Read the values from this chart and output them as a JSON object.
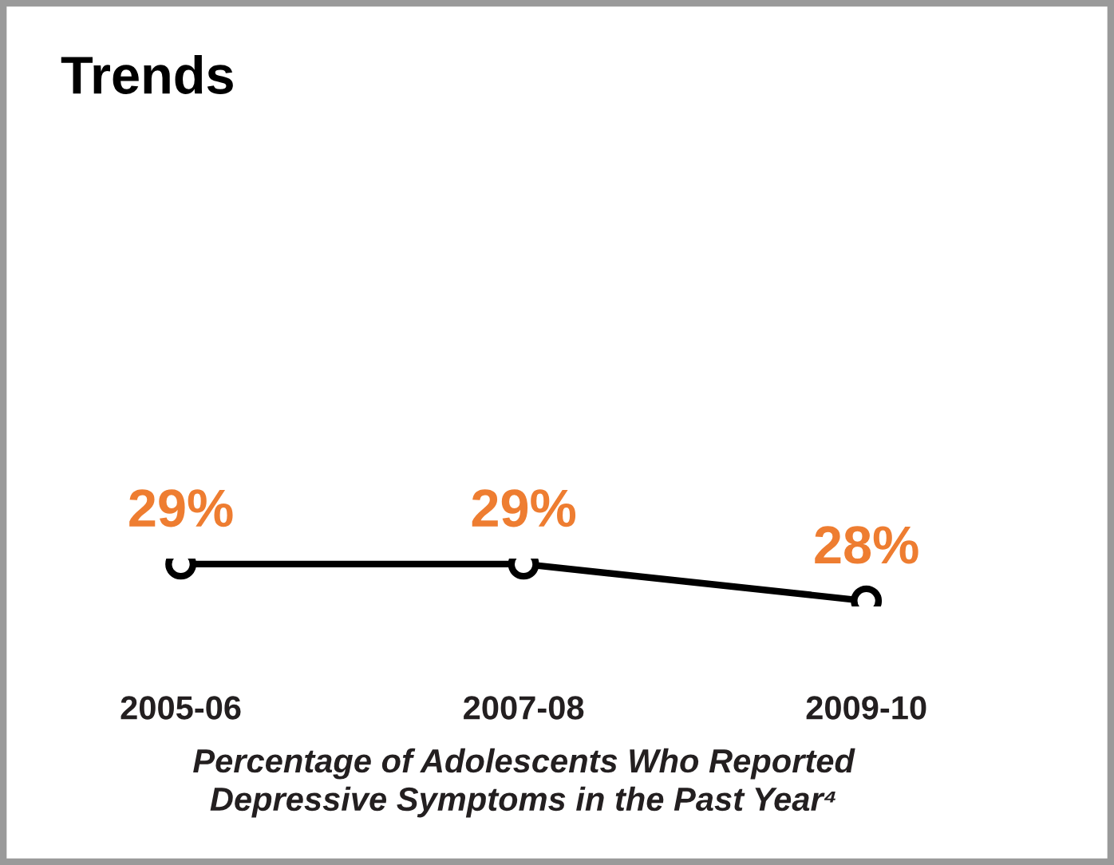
{
  "chart_data": {
    "type": "line",
    "title": "Trends",
    "xlabel": "Percentage of Adolescents Who Reported\nDepressive Symptoms in the Past Year⁴",
    "categories": [
      "2005-06",
      "2007-08",
      "2009-10"
    ],
    "series": [
      {
        "color": "#000000",
        "values": [
          29,
          29,
          28
        ],
        "value_labels": [
          "29%",
          "29%",
          "28%"
        ]
      }
    ],
    "marker": "circle",
    "line_style": "solid",
    "grid": false,
    "legend": false,
    "tick_labels": "x"
  }
}
